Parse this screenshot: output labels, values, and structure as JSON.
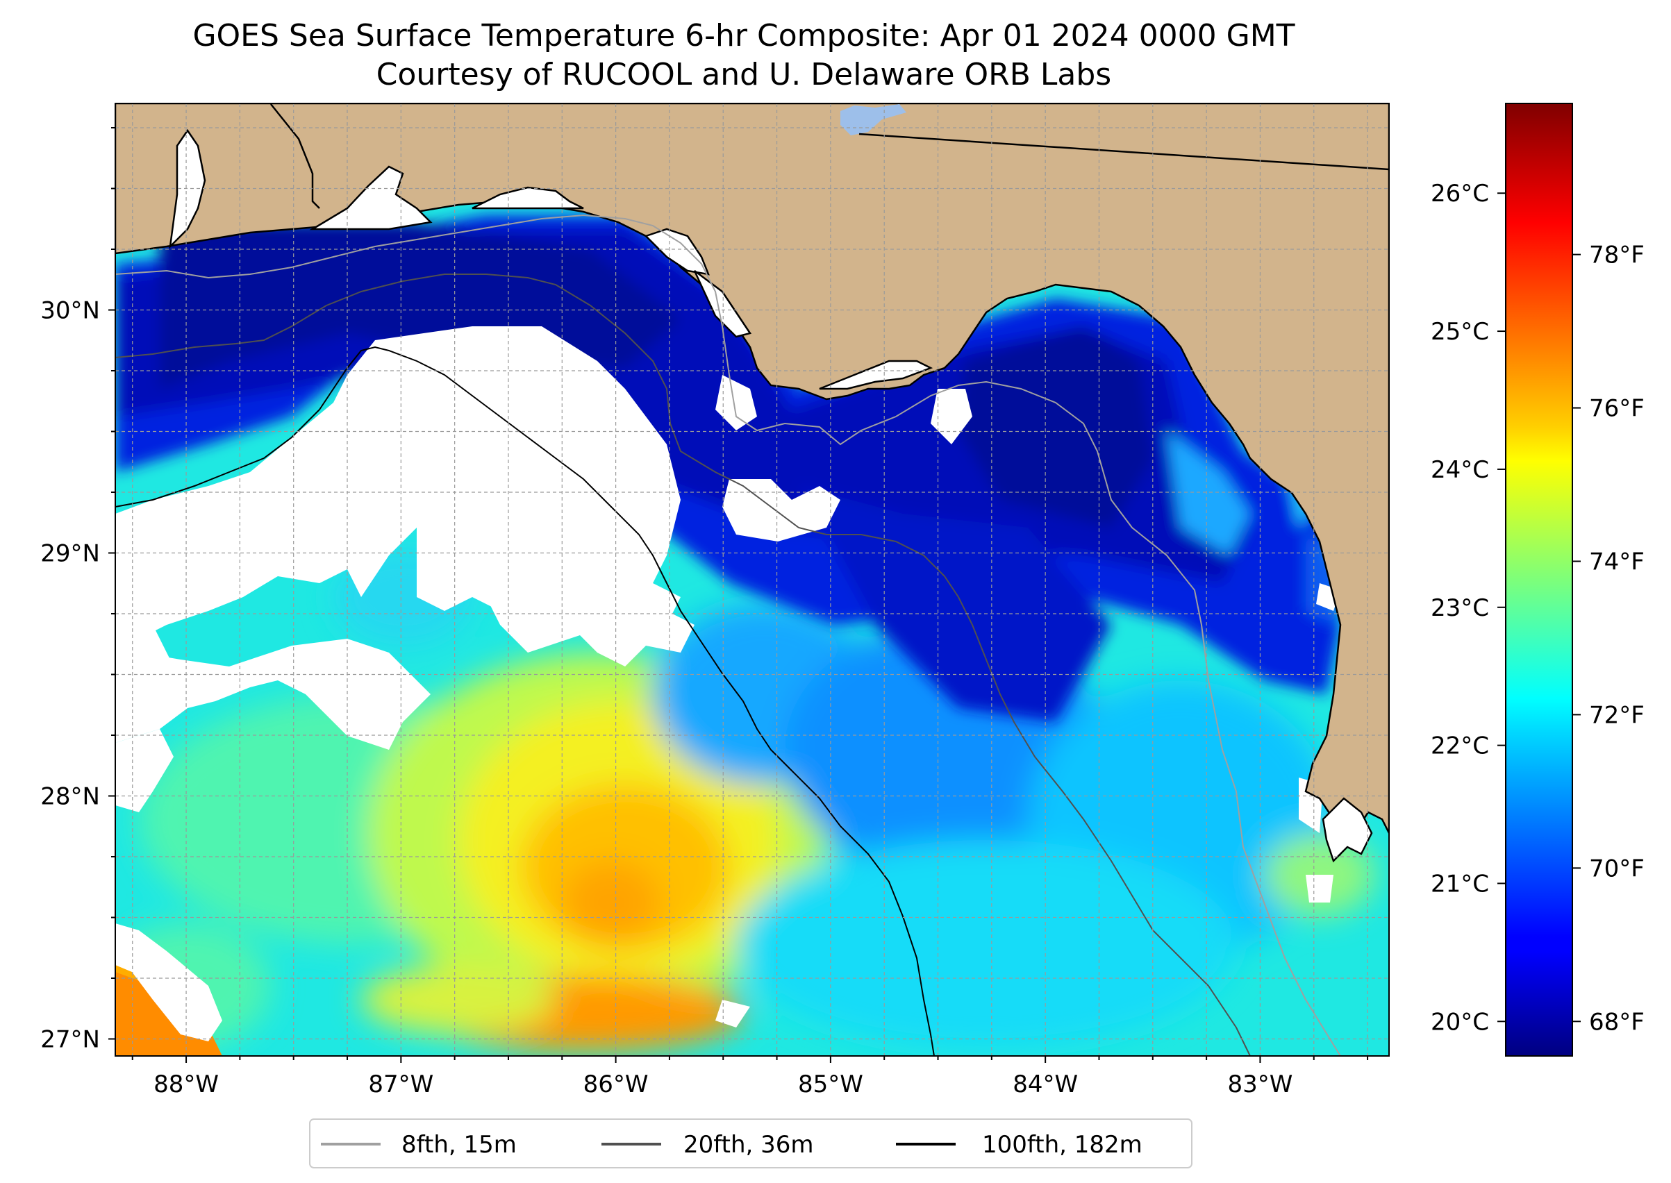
{
  "title": {
    "line1": "GOES Sea Surface Temperature 6-hr Composite: Apr 01 2024 0000 GMT",
    "line2": "Courtesy of RUCOOL and U. Delaware ORB Labs"
  },
  "map": {
    "lon_range": [
      -88.33,
      -82.4
    ],
    "lat_range": [
      26.93,
      30.85
    ],
    "land_color": "#d2b48c",
    "lon_ticks": [
      {
        "value": -88,
        "label": "88°W"
      },
      {
        "value": -87,
        "label": "87°W"
      },
      {
        "value": -86,
        "label": "86°W"
      },
      {
        "value": -85,
        "label": "85°W"
      },
      {
        "value": -84,
        "label": "84°W"
      },
      {
        "value": -83,
        "label": "83°W"
      }
    ],
    "lat_ticks": [
      {
        "value": 30,
        "label": "30°N"
      },
      {
        "value": 29,
        "label": "29°N"
      },
      {
        "value": 28,
        "label": "28°N"
      },
      {
        "value": 27,
        "label": "27°N"
      }
    ]
  },
  "colorbar": {
    "colormap": "jet",
    "celsius_range": [
      19.75,
      26.65
    ],
    "celsius_ticks": [
      {
        "value": 20,
        "label": "20°C"
      },
      {
        "value": 21,
        "label": "21°C"
      },
      {
        "value": 22,
        "label": "22°C"
      },
      {
        "value": 23,
        "label": "23°C"
      },
      {
        "value": 24,
        "label": "24°C"
      },
      {
        "value": 25,
        "label": "25°C"
      },
      {
        "value": 26,
        "label": "26°C"
      }
    ],
    "fahrenheit_ticks": [
      {
        "value": 68,
        "label": "68°F"
      },
      {
        "value": 70,
        "label": "70°F"
      },
      {
        "value": 72,
        "label": "72°F"
      },
      {
        "value": 74,
        "label": "74°F"
      },
      {
        "value": 76,
        "label": "76°F"
      },
      {
        "value": 78,
        "label": "78°F"
      }
    ]
  },
  "legend": {
    "items": [
      {
        "label": "8fth, 15m",
        "color": "#a0a0a0"
      },
      {
        "label": "20fth, 36m",
        "color": "#505050"
      },
      {
        "label": "100fth, 182m",
        "color": "#000000"
      }
    ]
  }
}
